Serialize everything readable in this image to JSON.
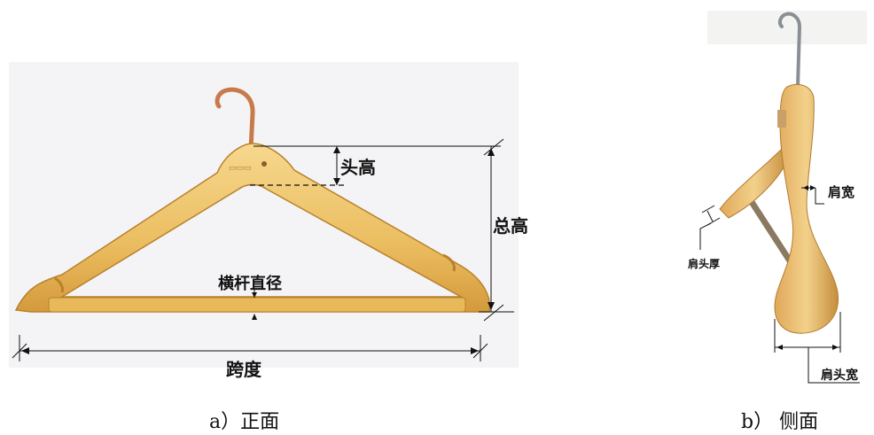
{
  "front": {
    "labels": {
      "head_height": "头高",
      "total_height": "总高",
      "bar_diameter": "横杆直径",
      "span": "跨度"
    },
    "caption": "a）正面"
  },
  "side": {
    "labels": {
      "shoulder_width": "肩宽",
      "shoulder_tip_thickness": "肩头厚",
      "shoulder_tip_width": "肩头宽"
    },
    "caption": "b） 侧面"
  },
  "colors": {
    "wood_light": "#f2cf7d",
    "wood_dark": "#d39a3c",
    "hook_copper": "#c87a4a",
    "hook_steel": "#8a8f96",
    "line": "#111111"
  }
}
